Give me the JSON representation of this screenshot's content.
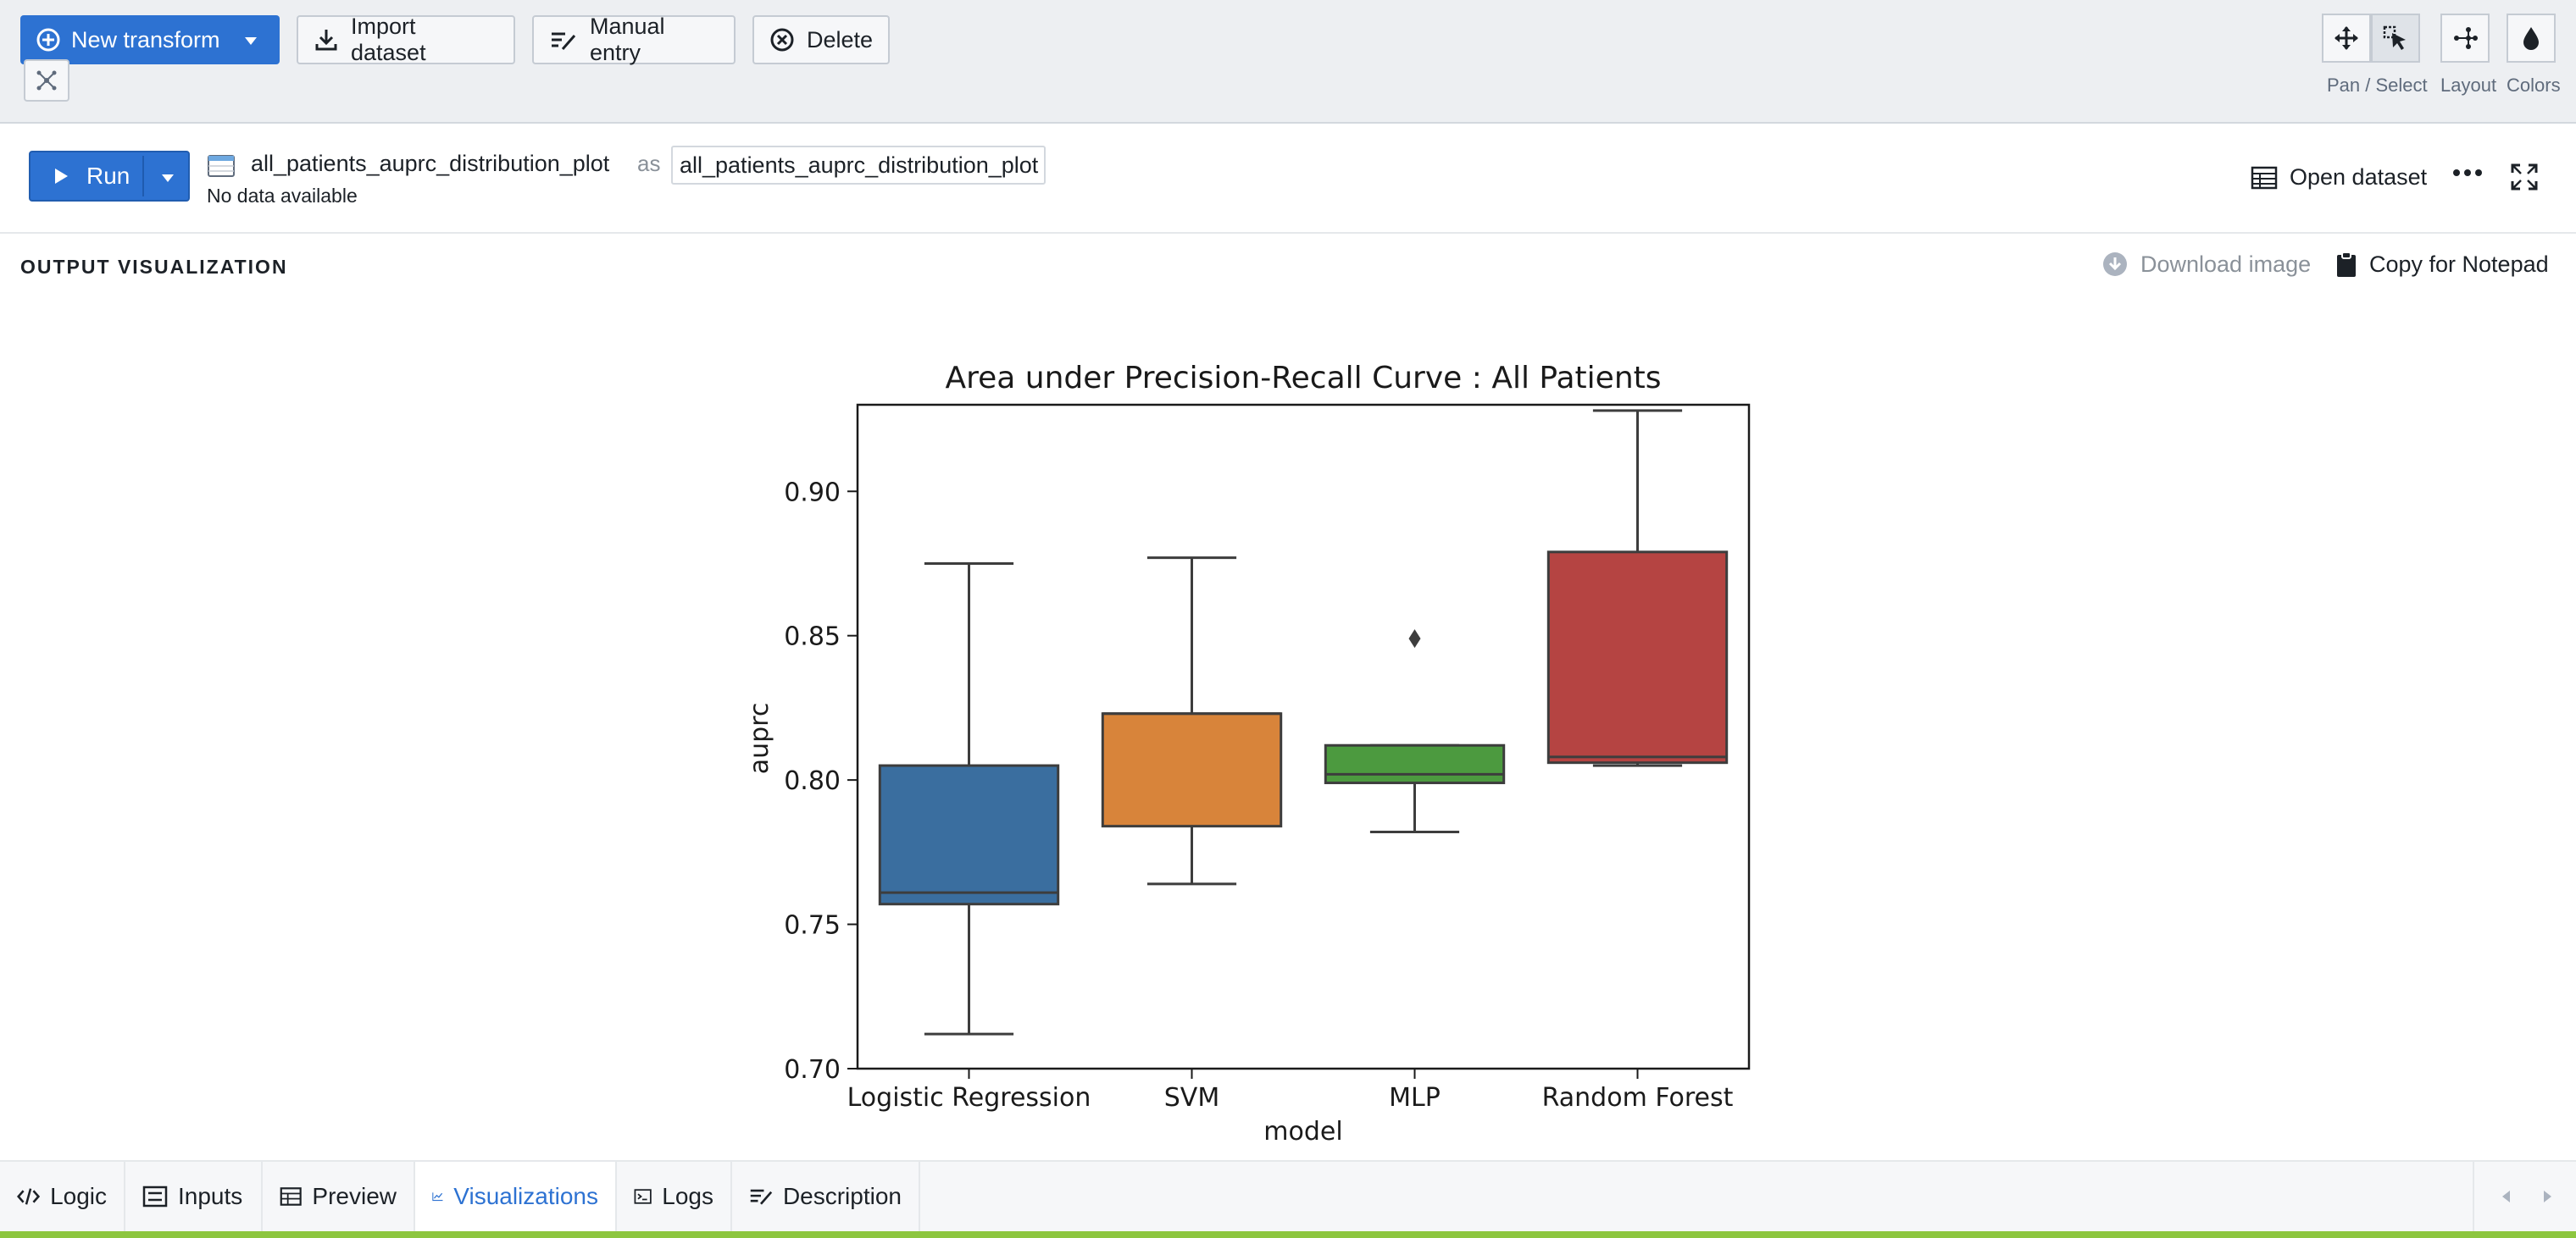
{
  "toolbar": {
    "new_transform": "New transform",
    "import_dataset": "Import dataset",
    "manual_entry": "Manual entry",
    "delete": "Delete",
    "tools": {
      "pan_select": "Pan / Select",
      "layout": "Layout",
      "colors": "Colors"
    }
  },
  "transform": {
    "run_label": "Run",
    "dataset_name": "all_patients_auprc_distribution_plot",
    "as_label": "as",
    "output_name": "all_patients_auprc_distribution_plot",
    "status": "No data available",
    "open_dataset": "Open dataset"
  },
  "output": {
    "section_title": "OUTPUT VISUALIZATION",
    "download_image": "Download image",
    "copy_for_notepad": "Copy for Notepad"
  },
  "chart_data": {
    "type": "box",
    "title": "Area under Precision-Recall Curve : All Patients",
    "xlabel": "model",
    "ylabel": "auprc",
    "ylim": [
      0.7,
      0.93
    ],
    "yticks": [
      "0.70",
      "0.75",
      "0.80",
      "0.85",
      "0.90"
    ],
    "grid": false,
    "categories": [
      "Logistic Regression",
      "SVM",
      "MLP",
      "Random Forest"
    ],
    "boxes": [
      {
        "name": "Logistic Regression",
        "whislo": 0.712,
        "q1": 0.757,
        "med": 0.761,
        "q3": 0.805,
        "whishi": 0.875,
        "fliers": [],
        "color": "#3a6e9f"
      },
      {
        "name": "SVM",
        "whislo": 0.764,
        "q1": 0.784,
        "med": 0.823,
        "q3": 0.823,
        "whishi": 0.877,
        "fliers": [],
        "color": "#d8843a"
      },
      {
        "name": "MLP",
        "whislo": 0.782,
        "q1": 0.799,
        "med": 0.802,
        "q3": 0.812,
        "whishi": 0.812,
        "fliers": [
          0.849
        ],
        "color": "#4c9a3f"
      },
      {
        "name": "Random Forest",
        "whislo": 0.805,
        "q1": 0.806,
        "med": 0.808,
        "q3": 0.879,
        "whishi": 0.928,
        "fliers": [],
        "color": "#b54442"
      }
    ]
  },
  "tabs": [
    {
      "label": "Logic",
      "icon": "code-icon"
    },
    {
      "label": "Inputs",
      "icon": "inputs-icon"
    },
    {
      "label": "Preview",
      "icon": "table-icon"
    },
    {
      "label": "Visualizations",
      "icon": "line-chart-icon",
      "active": true
    },
    {
      "label": "Logs",
      "icon": "console-icon"
    },
    {
      "label": "Description",
      "icon": "description-icon"
    }
  ],
  "colors": {
    "primary": "#2d72d2",
    "footer_accent": "#8dc63f"
  }
}
